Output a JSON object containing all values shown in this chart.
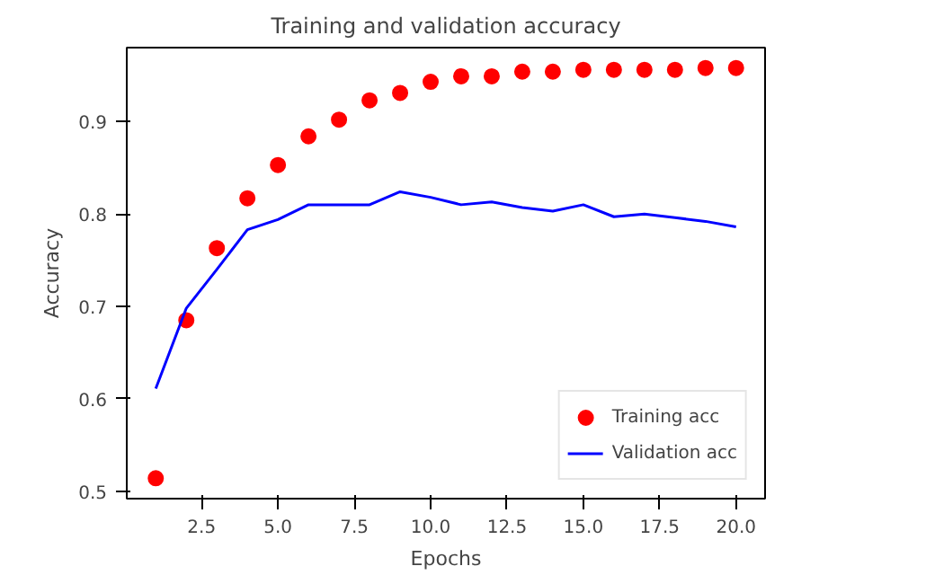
{
  "chart_data": {
    "type": "scatter",
    "title": "Training and validation accuracy",
    "xlabel": "Epochs",
    "ylabel": "Accuracy",
    "x": [
      1,
      2,
      3,
      4,
      5,
      6,
      7,
      8,
      9,
      10,
      11,
      12,
      13,
      14,
      15,
      16,
      17,
      18,
      19,
      20
    ],
    "series": [
      {
        "name": "Training acc",
        "marker": "circle",
        "color": "#ff0000",
        "values": [
          0.514,
          0.685,
          0.763,
          0.817,
          0.853,
          0.884,
          0.902,
          0.923,
          0.931,
          0.943,
          0.949,
          0.949,
          0.954,
          0.954,
          0.956,
          0.956,
          0.956,
          0.956,
          0.958,
          0.958
        ]
      },
      {
        "name": "Validation acc",
        "type": "line",
        "line_style": "solid",
        "color": "#0000ff",
        "values": [
          0.611,
          0.698,
          0.74,
          0.783,
          0.794,
          0.81,
          0.81,
          0.81,
          0.824,
          0.818,
          0.81,
          0.813,
          0.807,
          0.803,
          0.81,
          0.797,
          0.8,
          0.796,
          0.792,
          0.786
        ]
      }
    ],
    "xlim": [
      0.05,
      20.95
    ],
    "ylim": [
      0.492,
      0.98
    ],
    "xticks": [
      {
        "value": 2.5,
        "label": "2.5"
      },
      {
        "value": 5,
        "label": "5.0"
      },
      {
        "value": 7.5,
        "label": "7.5"
      },
      {
        "value": 10,
        "label": "10.0"
      },
      {
        "value": 12.5,
        "label": "12.5"
      },
      {
        "value": 15,
        "label": "15.0"
      },
      {
        "value": 17.5,
        "label": "17.5"
      },
      {
        "value": 20,
        "label": "20.0"
      }
    ],
    "yticks": [
      0.5,
      0.6,
      0.7,
      0.8,
      0.9
    ],
    "grid": false,
    "legend": "bottom right"
  }
}
